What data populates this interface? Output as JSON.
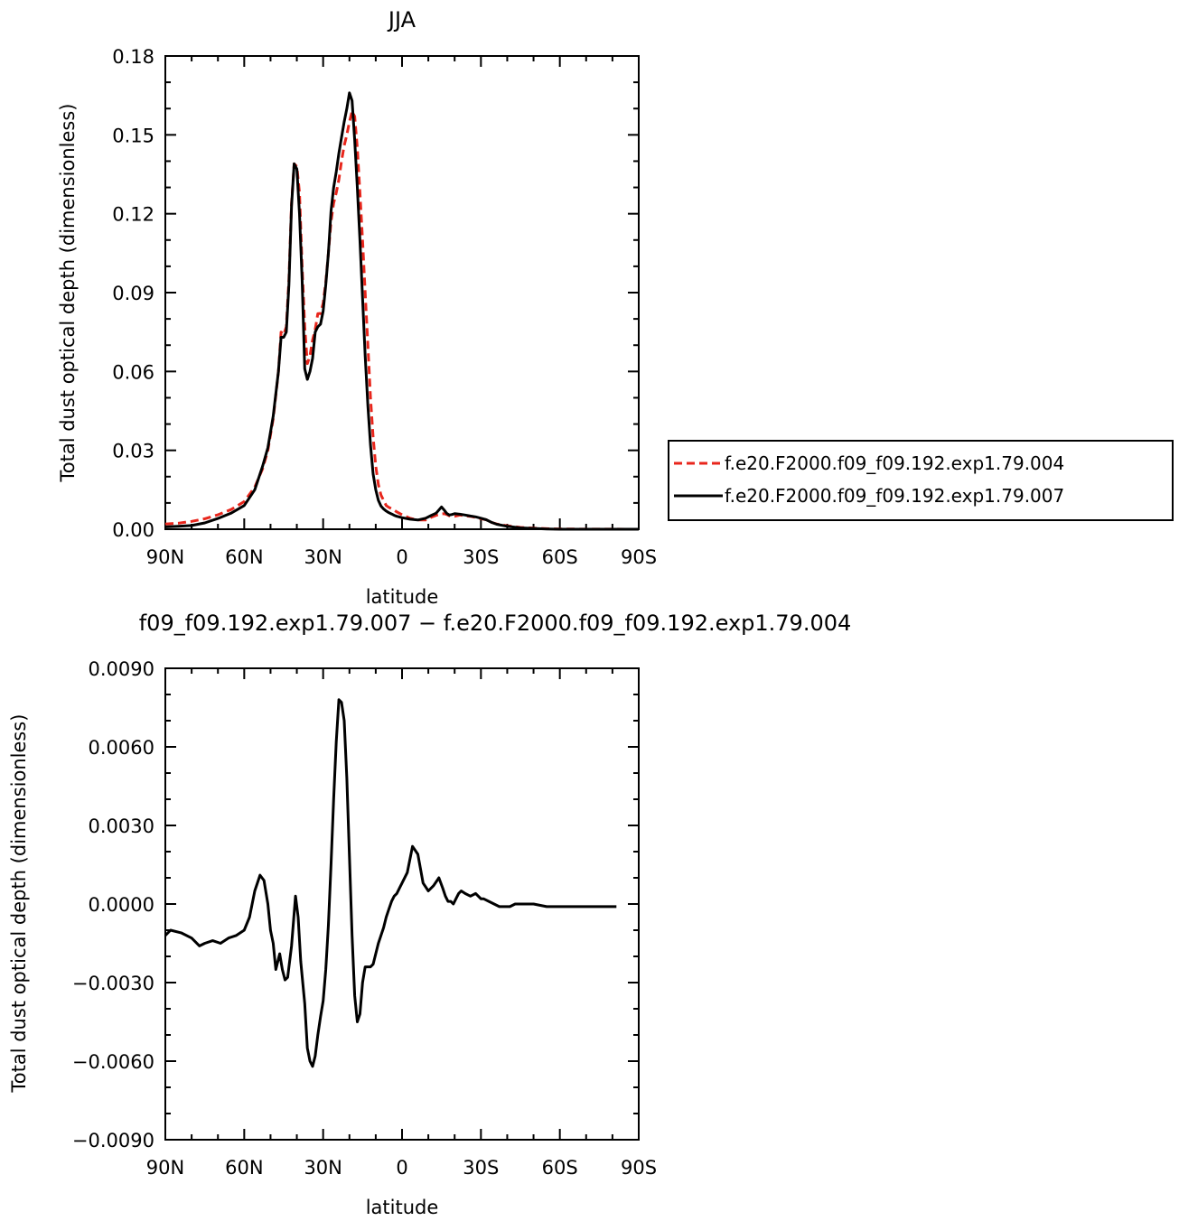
{
  "chart_data": [
    {
      "type": "line",
      "title": "JJA",
      "xlabel": "latitude",
      "ylabel": "Total dust optical depth (dimensionless)",
      "xlim": [
        90,
        -90
      ],
      "ylim": [
        0,
        0.18
      ],
      "xticks": [
        90,
        60,
        30,
        0,
        -30,
        -60,
        -90
      ],
      "xtick_labels": [
        "90N",
        "60N",
        "30N",
        "0",
        "30S",
        "60S",
        "90S"
      ],
      "yticks": [
        0,
        0.03,
        0.06,
        0.09,
        0.12,
        0.15,
        0.18
      ],
      "ytick_labels": [
        "0.00",
        "0.03",
        "0.06",
        "0.09",
        "0.12",
        "0.15",
        "0.18"
      ],
      "grid": false,
      "legend_position": "right",
      "x": [
        90,
        85,
        80,
        75,
        70,
        65,
        60,
        56,
        53,
        51,
        49,
        47,
        46,
        45,
        44,
        43,
        42,
        41,
        40,
        39,
        38,
        37,
        36,
        35,
        34,
        33,
        32,
        31,
        30,
        29,
        28,
        27,
        26,
        25,
        24,
        23,
        22,
        21,
        20,
        19,
        18,
        17,
        16,
        15,
        14,
        13,
        12,
        11,
        10,
        9,
        8,
        7,
        6,
        5,
        4,
        3,
        2,
        0,
        -3,
        -6,
        -9,
        -11,
        -13,
        -15,
        -16,
        -17,
        -18,
        -19,
        -20,
        -22,
        -24,
        -26,
        -28,
        -30,
        -32,
        -34,
        -36,
        -40,
        -45,
        -50,
        -55,
        -60,
        -70,
        -80,
        -90
      ],
      "series": [
        {
          "name": "f.e20.F2000.f09_f09.192.exp1.79.004",
          "color": "#e8261c",
          "dash": "dashed",
          "values": [
            0.002,
            0.0023,
            0.003,
            0.004,
            0.0055,
            0.0075,
            0.0105,
            0.016,
            0.023,
            0.03,
            0.042,
            0.06,
            0.075,
            0.074,
            0.077,
            0.095,
            0.124,
            0.139,
            0.138,
            0.128,
            0.1,
            0.077,
            0.063,
            0.066,
            0.072,
            0.076,
            0.082,
            0.082,
            0.086,
            0.094,
            0.105,
            0.117,
            0.124,
            0.128,
            0.133,
            0.14,
            0.146,
            0.15,
            0.155,
            0.159,
            0.157,
            0.145,
            0.128,
            0.11,
            0.09,
            0.07,
            0.05,
            0.035,
            0.024,
            0.017,
            0.013,
            0.011,
            0.009,
            0.0083,
            0.0078,
            0.0072,
            0.0066,
            0.0055,
            0.0042,
            0.0035,
            0.0035,
            0.0045,
            0.0053,
            0.0058,
            0.0059,
            0.0056,
            0.0051,
            0.0049,
            0.0049,
            0.0054,
            0.0051,
            0.0049,
            0.0045,
            0.004,
            0.0036,
            0.0026,
            0.002,
            0.0013,
            0.0007,
            0.0004,
            0.0002,
            0.0001,
            5e-05,
            3e-05,
            0.0
          ]
        },
        {
          "name": "f.e20.F2000.f09_f09.192.exp1.79.007",
          "color": "#000000",
          "dash": "solid",
          "values": [
            0.0009,
            0.0011,
            0.0014,
            0.0024,
            0.0041,
            0.0061,
            0.009,
            0.015,
            0.024,
            0.031,
            0.043,
            0.06,
            0.073,
            0.073,
            0.075,
            0.093,
            0.123,
            0.139,
            0.137,
            0.12,
            0.095,
            0.061,
            0.057,
            0.06,
            0.065,
            0.075,
            0.077,
            0.078,
            0.083,
            0.093,
            0.105,
            0.121,
            0.13,
            0.136,
            0.143,
            0.149,
            0.155,
            0.16,
            0.166,
            0.163,
            0.148,
            0.13,
            0.11,
            0.088,
            0.066,
            0.047,
            0.032,
            0.021,
            0.015,
            0.011,
            0.0088,
            0.0077,
            0.0069,
            0.0063,
            0.0058,
            0.0053,
            0.0049,
            0.0044,
            0.0038,
            0.0035,
            0.0042,
            0.0052,
            0.0061,
            0.0085,
            0.0073,
            0.006,
            0.0054,
            0.0056,
            0.0059,
            0.0057,
            0.0054,
            0.005,
            0.0047,
            0.0042,
            0.0036,
            0.0026,
            0.0019,
            0.0011,
            0.0005,
            0.0003,
            0.0001,
            0.0,
            0.0,
            0.0,
            0.0
          ]
        }
      ]
    },
    {
      "type": "line",
      "title": "f09_f09.192.exp1.79.007 − f.e20.F2000.f09_f09.192.exp1.79.004",
      "xlabel": "latitude",
      "ylabel": "Total dust optical depth (dimensionless)",
      "xlim": [
        90,
        -90
      ],
      "ylim": [
        -0.009,
        0.009
      ],
      "xticks": [
        90,
        60,
        30,
        0,
        -30,
        -60,
        -90
      ],
      "xtick_labels": [
        "90N",
        "60N",
        "30N",
        "0",
        "30S",
        "60S",
        "90S"
      ],
      "yticks": [
        -0.009,
        -0.006,
        -0.003,
        0.0,
        0.003,
        0.006,
        0.009
      ],
      "ytick_labels": [
        "−0.0090",
        "−0.0060",
        "−0.0030",
        "0.0000",
        "0.0030",
        "0.0060",
        "0.0090"
      ],
      "grid": false,
      "x": [
        90,
        88,
        84,
        80,
        77,
        75,
        72,
        69,
        66,
        63,
        60,
        58,
        56,
        54,
        52.5,
        51,
        50,
        49,
        48,
        46.5,
        45.5,
        44.5,
        43.5,
        42,
        40.5,
        39.5,
        38.5,
        37,
        36,
        35,
        34,
        33,
        32,
        31,
        30,
        29,
        28,
        27,
        26,
        25,
        24,
        23,
        22,
        21,
        20,
        19,
        18,
        17,
        16,
        15,
        14,
        13,
        12,
        11,
        10,
        9,
        8,
        7,
        6,
        5,
        4,
        3,
        2,
        1,
        0,
        -2,
        -4,
        -6,
        -8,
        -10,
        -12,
        -14,
        -15.5,
        -16.5,
        -17.5,
        -18.5,
        -19.5,
        -20.5,
        -21.5,
        -22.5,
        -24,
        -26,
        -28,
        -29,
        -30,
        -31,
        -33,
        -35,
        -37,
        -39,
        -41,
        -43,
        -45,
        -50,
        -55,
        -60,
        -65,
        -70,
        -75,
        -80,
        -81.5
      ],
      "series": [
        {
          "name": "",
          "color": "#000000",
          "dash": "solid",
          "values": [
            -0.0012,
            -0.001,
            -0.0011,
            -0.0013,
            -0.0016,
            -0.0015,
            -0.0014,
            -0.0015,
            -0.0013,
            -0.0012,
            -0.001,
            -0.0005,
            0.0005,
            0.0011,
            0.0009,
            0.0,
            -0.001,
            -0.0015,
            -0.0025,
            -0.0019,
            -0.0025,
            -0.0029,
            -0.0028,
            -0.0016,
            0.0003,
            -0.0005,
            -0.0022,
            -0.0038,
            -0.0055,
            -0.006,
            -0.0062,
            -0.0058,
            -0.005,
            -0.0043,
            -0.0037,
            -0.0025,
            -0.0008,
            0.0015,
            0.004,
            0.0062,
            0.0078,
            0.0077,
            0.007,
            0.0048,
            0.0018,
            -0.0012,
            -0.0035,
            -0.0045,
            -0.0042,
            -0.003,
            -0.0024,
            -0.0024,
            -0.0024,
            -0.0023,
            -0.0019,
            -0.0015,
            -0.0012,
            -0.0009,
            -0.0005,
            -0.0002,
            0.0001,
            0.0003,
            0.0004,
            0.0006,
            0.0008,
            0.0012,
            0.0022,
            0.0019,
            0.0008,
            0.0005,
            0.0007,
            0.001,
            0.0006,
            0.0003,
            0.0001,
            0.0001,
            0.0,
            0.0002,
            0.0004,
            0.0005,
            0.0004,
            0.0003,
            0.0004,
            0.0003,
            0.0002,
            0.0002,
            0.0001,
            0.0,
            -0.0001,
            -0.0001,
            -0.0001,
            0.0,
            0.0,
            0.0,
            -0.0001,
            -0.0001,
            -0.0001,
            -0.0001,
            -0.0001,
            -0.0001,
            -0.0001
          ]
        }
      ]
    }
  ]
}
